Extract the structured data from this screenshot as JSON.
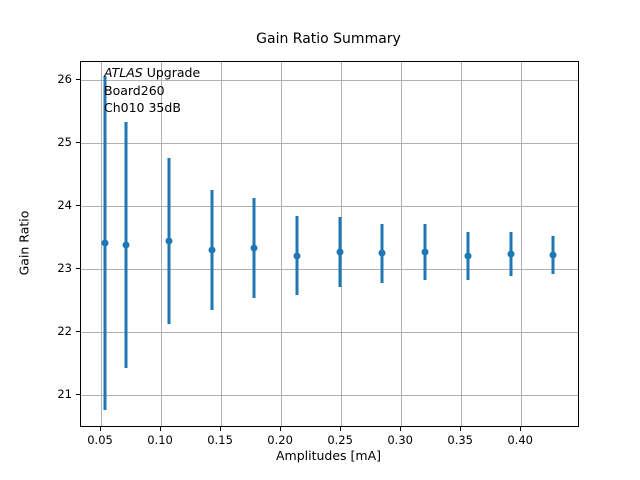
{
  "chart_data": {
    "type": "scatter",
    "title": "Gain Ratio Summary",
    "xlabel": "Amplitudes [mA]",
    "ylabel": "Gain Ratio",
    "x": [
      0.0533,
      0.0711,
      0.1067,
      0.1422,
      0.1778,
      0.2133,
      0.2489,
      0.2844,
      0.32,
      0.3556,
      0.3911,
      0.4267
    ],
    "y": [
      23.41,
      23.38,
      23.44,
      23.3,
      23.33,
      23.21,
      23.27,
      23.25,
      23.27,
      23.21,
      23.24,
      23.22
    ],
    "yerr": [
      2.66,
      1.95,
      1.32,
      0.96,
      0.79,
      0.63,
      0.56,
      0.47,
      0.44,
      0.38,
      0.35,
      0.31
    ],
    "xticks": [
      0.05,
      0.1,
      0.15,
      0.2,
      0.25,
      0.3,
      0.35,
      0.4
    ],
    "xtick_labels": [
      "0.05",
      "0.10",
      "0.15",
      "0.20",
      "0.25",
      "0.30",
      "0.35",
      "0.40"
    ],
    "yticks": [
      21,
      22,
      23,
      24,
      25,
      26
    ],
    "ytick_labels": [
      "21",
      "22",
      "23",
      "24",
      "25",
      "26"
    ],
    "xlim": [
      0.0333,
      0.4473
    ],
    "ylim": [
      20.5,
      26.29
    ],
    "grid": true,
    "legend": null,
    "marker_color": "#1f77b4",
    "grid_color": "#b0b0b0",
    "annotation": {
      "line1_italic": "ATLAS",
      "line1_rest": " Upgrade",
      "line2": "Board260",
      "line3": "Ch010 35dB"
    }
  }
}
